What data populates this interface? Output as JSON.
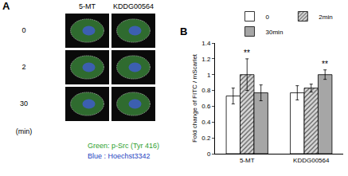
{
  "panel_a": {
    "label": "A",
    "columns": [
      "5-MT",
      "KDDG00564"
    ],
    "rows": [
      "0",
      "2",
      "30"
    ],
    "unit": "(min)",
    "legend": [
      {
        "text": "Green: p-Src (Tyr 416)",
        "color": "#2e9e2e"
      },
      {
        "text": "Blue : Hoechst3342",
        "color": "#1f3fbf"
      }
    ]
  },
  "chart_data": {
    "label": "B",
    "type": "bar",
    "categories": [
      "5-MT",
      "KDDG00564"
    ],
    "series": [
      {
        "name": "0",
        "color": "#ffffff",
        "values": [
          0.73,
          0.77
        ],
        "errors": [
          0.1,
          0.09
        ]
      },
      {
        "name": "2min",
        "color": "#d9d9d9",
        "marker": "hatch",
        "values": [
          1.0,
          0.83
        ],
        "errors": [
          0.2,
          0.05
        ]
      },
      {
        "name": "30min",
        "color": "#a6a6a6",
        "values": [
          0.77,
          1.0
        ],
        "errors": [
          0.1,
          0.06
        ]
      }
    ],
    "y_label": "Fold change of FITC / mScarlet",
    "ylim": [
      0,
      1.4
    ],
    "yticks": [
      0,
      0.2,
      0.4,
      0.6,
      0.8,
      1,
      1.2,
      1.4
    ],
    "grid": false,
    "legend": "top",
    "annotations": [
      {
        "text": "**",
        "category": "5-MT",
        "series": "2min"
      },
      {
        "text": "**",
        "category": "KDDG00564",
        "series": "30min"
      }
    ]
  }
}
